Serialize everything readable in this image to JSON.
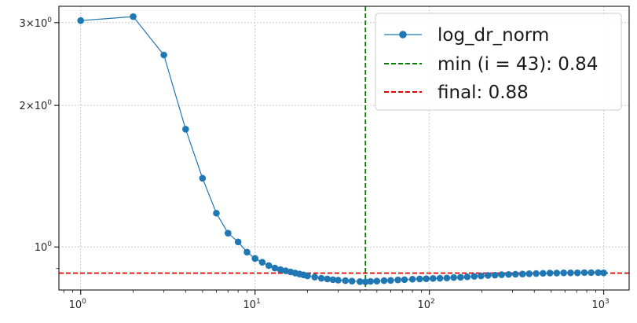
{
  "chart_data": {
    "type": "line",
    "xscale": "log",
    "yscale": "log",
    "xlim": [
      0.75,
      1400
    ],
    "ylim": [
      0.81,
      3.25
    ],
    "grid": true,
    "legend_position": "top-right",
    "x_ticks": [
      {
        "value": 1,
        "base": "10",
        "exp": "0"
      },
      {
        "value": 10,
        "base": "10",
        "exp": "1"
      },
      {
        "value": 100,
        "base": "10",
        "exp": "2"
      },
      {
        "value": 1000,
        "base": "10",
        "exp": "3"
      }
    ],
    "y_ticks": [
      {
        "value": 3,
        "mult": "3",
        "base": "10",
        "exp": "0"
      },
      {
        "value": 2,
        "mult": "2",
        "base": "10",
        "exp": "0"
      },
      {
        "value": 1,
        "label": "10",
        "exp": "0"
      }
    ],
    "series": [
      {
        "name": "log_dr_norm",
        "color": "#1f77b4",
        "x": [
          1,
          2,
          3,
          4,
          5,
          6,
          7,
          8,
          9,
          10,
          11,
          12,
          13,
          14,
          15,
          16,
          17,
          18,
          19,
          20,
          22,
          24,
          26,
          28,
          30,
          33,
          36,
          40,
          43,
          46,
          50,
          55,
          60,
          66,
          72,
          80,
          88,
          96,
          105,
          115,
          126,
          138,
          151,
          165,
          181,
          198,
          217,
          238,
          260,
          285,
          312,
          342,
          374,
          410,
          449,
          492,
          538,
          590,
          646,
          707,
          775,
          848,
          930,
          1000
        ],
        "values": [
          3.03,
          3.09,
          2.56,
          1.78,
          1.4,
          1.18,
          1.07,
          1.025,
          0.975,
          0.945,
          0.928,
          0.913,
          0.902,
          0.895,
          0.89,
          0.885,
          0.88,
          0.876,
          0.872,
          0.868,
          0.863,
          0.858,
          0.855,
          0.852,
          0.85,
          0.848,
          0.846,
          0.844,
          0.843,
          0.845,
          0.846,
          0.848,
          0.849,
          0.851,
          0.852,
          0.854,
          0.855,
          0.856,
          0.857,
          0.858,
          0.859,
          0.861,
          0.862,
          0.864,
          0.866,
          0.868,
          0.87,
          0.871,
          0.873,
          0.874,
          0.875,
          0.876,
          0.877,
          0.878,
          0.879,
          0.88,
          0.88,
          0.881,
          0.881,
          0.881,
          0.882,
          0.882,
          0.882,
          0.881
        ]
      }
    ],
    "hlines": [
      {
        "name": "final: 0.88",
        "y": 0.88,
        "color": "#e00000",
        "style": "dashed"
      }
    ],
    "vlines": [
      {
        "name": "min (i = 43): 0.84",
        "x": 43,
        "color": "#008000",
        "style": "dashed"
      }
    ]
  }
}
